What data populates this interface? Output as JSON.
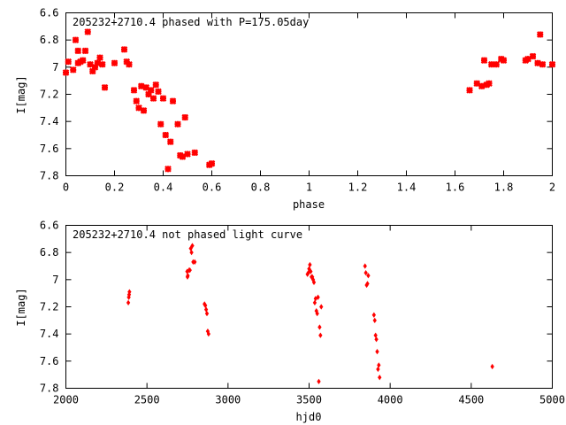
{
  "chart_data": [
    {
      "type": "scatter",
      "title": "205232+2710.4 phased with P=175.05day",
      "xlabel": "phase",
      "ylabel": "I[mag]",
      "xlim": [
        0,
        2
      ],
      "ylim": [
        7.8,
        6.6
      ],
      "y_inverted": true,
      "grid": false,
      "x_ticks": [
        "0",
        "0.2",
        "0.4",
        "0.6",
        "0.8",
        "1",
        "1.2",
        "1.4",
        "1.6",
        "1.8",
        "2"
      ],
      "y_ticks": [
        "6.6",
        "6.8",
        "7",
        "7.2",
        "7.4",
        "7.6",
        "7.8"
      ],
      "marker": "cross",
      "color": "#ff0000",
      "series": [
        {
          "x": [
            0.0,
            0.01,
            0.03,
            0.04,
            0.05,
            0.05,
            0.06,
            0.07,
            0.08,
            0.09,
            0.1,
            0.11,
            0.12,
            0.13,
            0.14,
            0.15,
            0.16,
            0.2,
            0.24,
            0.25,
            0.26,
            0.28,
            0.29,
            0.3,
            0.31,
            0.32,
            0.33,
            0.34,
            0.35,
            0.36,
            0.37,
            0.38,
            0.39,
            0.4,
            0.41,
            0.42,
            0.43,
            0.44,
            0.46,
            0.47,
            0.48,
            0.49,
            0.5,
            0.53,
            0.59,
            0.6,
            1.66,
            1.69,
            1.71,
            1.72,
            1.73,
            1.74,
            1.75,
            1.77,
            1.79,
            1.8,
            1.89,
            1.9,
            1.92,
            1.94,
            1.95,
            1.96,
            2.0
          ],
          "y": [
            7.04,
            6.96,
            7.02,
            6.8,
            6.88,
            6.97,
            6.96,
            6.95,
            6.88,
            6.74,
            6.98,
            7.03,
            7.0,
            6.97,
            6.93,
            6.98,
            7.15,
            6.97,
            6.87,
            6.96,
            6.98,
            7.17,
            7.25,
            7.3,
            7.14,
            7.32,
            7.15,
            7.2,
            7.17,
            7.23,
            7.13,
            7.18,
            7.42,
            7.23,
            7.5,
            7.75,
            7.55,
            7.25,
            7.42,
            7.65,
            7.66,
            7.37,
            7.64,
            7.63,
            7.72,
            7.71,
            7.17,
            7.12,
            7.14,
            6.95,
            7.13,
            7.12,
            6.98,
            6.98,
            6.94,
            6.95,
            6.95,
            6.94,
            6.92,
            6.97,
            6.76,
            6.98,
            6.98
          ]
        }
      ]
    },
    {
      "type": "scatter",
      "title": "205232+2710.4 not phased light curve",
      "xlabel": "hjd0",
      "ylabel": "I[mag]",
      "xlim": [
        2000,
        5000
      ],
      "ylim": [
        7.8,
        6.6
      ],
      "y_inverted": true,
      "grid": false,
      "x_ticks": [
        "2000",
        "2500",
        "3000",
        "3500",
        "4000",
        "4500",
        "5000"
      ],
      "y_ticks": [
        "6.6",
        "6.8",
        "7",
        "7.2",
        "7.4",
        "7.6",
        "7.8"
      ],
      "marker": "diamond",
      "color": "#ff0000",
      "series": [
        {
          "x": [
            2385,
            2388,
            2390,
            2392,
            2748,
            2750,
            2752,
            2760,
            2765,
            2770,
            2775,
            2780,
            2785,
            2795,
            2855,
            2860,
            2865,
            2870,
            2875,
            2880,
            3490,
            3495,
            3500,
            3505,
            3510,
            3515,
            3520,
            3525,
            3530,
            3535,
            3540,
            3545,
            3550,
            3555,
            3560,
            3565,
            3570,
            3575,
            3845,
            3850,
            3855,
            3860,
            3865,
            3900,
            3905,
            3910,
            3915,
            3920,
            3925,
            3930,
            3935,
            4630
          ],
          "y": [
            7.17,
            7.13,
            7.11,
            7.09,
            6.94,
            6.98,
            6.97,
            6.93,
            6.93,
            6.77,
            6.8,
            6.75,
            6.87,
            6.87,
            7.18,
            7.19,
            7.22,
            7.25,
            7.38,
            7.4,
            6.96,
            6.95,
            6.92,
            6.89,
            6.94,
            6.98,
            6.98,
            7.0,
            7.02,
            7.17,
            7.14,
            7.23,
            7.25,
            7.13,
            7.75,
            7.35,
            7.41,
            7.2,
            6.9,
            6.95,
            7.04,
            7.03,
            6.97,
            7.26,
            7.3,
            7.41,
            7.44,
            7.53,
            7.66,
            7.63,
            7.72,
            7.64
          ]
        }
      ]
    }
  ]
}
